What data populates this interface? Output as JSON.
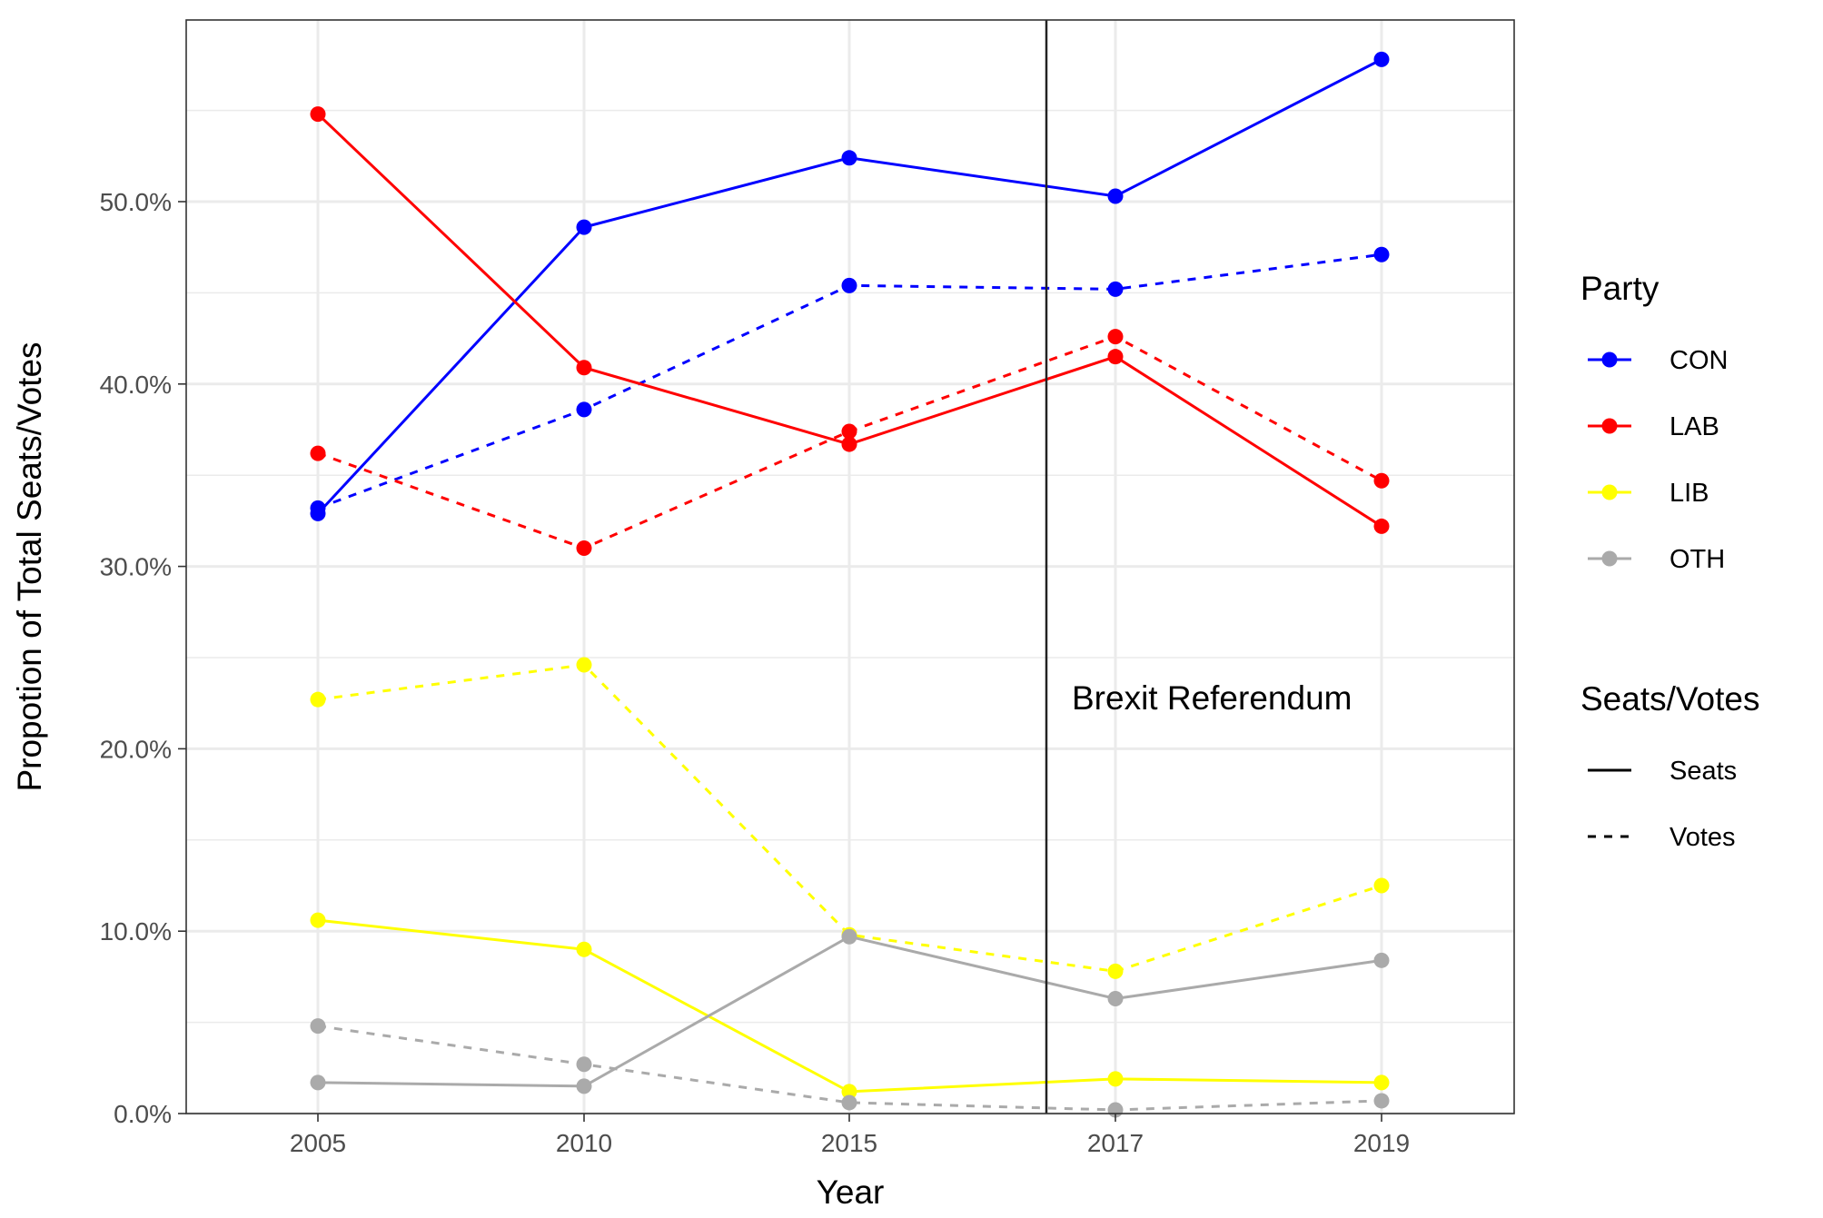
{
  "chart_data": {
    "type": "line",
    "title": "",
    "xlabel": "Year",
    "ylabel": "Propotion of Total Seats/Votes",
    "categories": [
      "2005",
      "2010",
      "2015",
      "2017",
      "2019"
    ],
    "y_ticks": [
      "0.0%",
      "10.0%",
      "20.0%",
      "30.0%",
      "40.0%",
      "50.0%"
    ],
    "ylim": [
      0,
      60
    ],
    "grid": true,
    "legend_position": "right",
    "colors": {
      "CON": "#0000ff",
      "LAB": "#ff0000",
      "LIB": "#ffff00",
      "OTH": "#aaaaaa"
    },
    "series": [
      {
        "name": "CON",
        "measure": "Seats",
        "values": [
          32.9,
          48.6,
          52.4,
          50.3,
          57.8
        ]
      },
      {
        "name": "CON",
        "measure": "Votes",
        "values": [
          33.2,
          38.6,
          45.4,
          45.2,
          47.1
        ]
      },
      {
        "name": "LAB",
        "measure": "Seats",
        "values": [
          54.8,
          40.9,
          36.7,
          41.5,
          32.2
        ]
      },
      {
        "name": "LAB",
        "measure": "Votes",
        "values": [
          36.2,
          31.0,
          37.4,
          42.6,
          34.7
        ]
      },
      {
        "name": "LIB",
        "measure": "Seats",
        "values": [
          10.6,
          9.0,
          1.2,
          1.9,
          1.7
        ]
      },
      {
        "name": "LIB",
        "measure": "Votes",
        "values": [
          22.7,
          24.6,
          9.8,
          7.8,
          12.5
        ]
      },
      {
        "name": "OTH",
        "measure": "Seats",
        "values": [
          1.7,
          1.5,
          9.7,
          6.3,
          8.4
        ]
      },
      {
        "name": "OTH",
        "measure": "Votes",
        "values": [
          4.8,
          2.7,
          0.6,
          0.2,
          0.7
        ]
      }
    ],
    "annotations": [
      {
        "text": "Brexit Referendum",
        "x": 2016.5
      }
    ],
    "legend": {
      "party_title": "Party",
      "party_items": [
        "CON",
        "LAB",
        "LIB",
        "OTH"
      ],
      "measure_title": "Seats/Votes",
      "measure_items": [
        {
          "label": "Seats",
          "line": "solid"
        },
        {
          "label": "Votes",
          "line": "dashed"
        }
      ]
    }
  }
}
